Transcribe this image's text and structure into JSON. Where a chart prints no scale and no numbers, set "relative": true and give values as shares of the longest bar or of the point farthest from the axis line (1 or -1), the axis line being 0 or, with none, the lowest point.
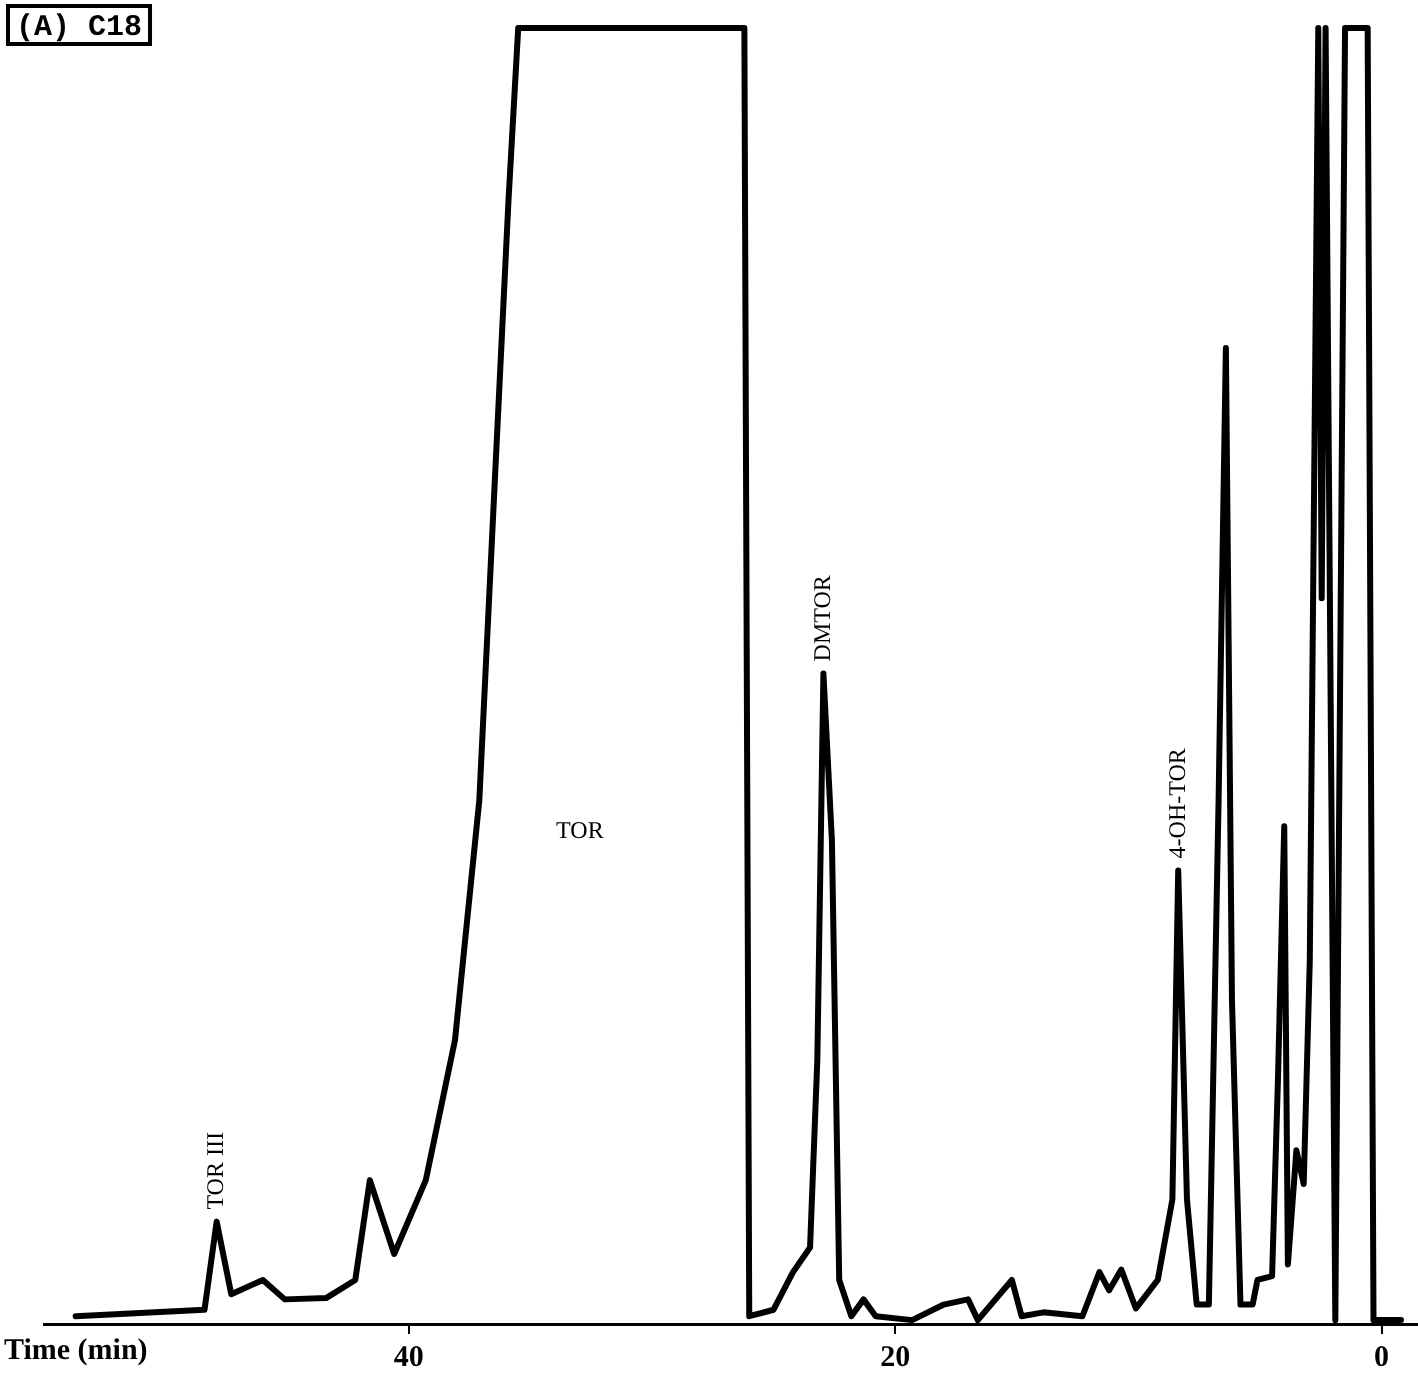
{
  "chart_data": {
    "type": "line",
    "title": "(A) C18",
    "xlabel": "Time (min)",
    "relative": true,
    "xlim": [
      55,
      -1.5
    ],
    "xticks": [
      40,
      20,
      0
    ],
    "grid": false,
    "legend": false,
    "marker": "none",
    "line_style": "solid",
    "annotations": [
      {
        "text": "TOR III",
        "x": 47.9,
        "y": 0.079
      },
      "TOR",
      {
        "text": "DMTOR",
        "x": 22.95,
        "y": 0.502
      },
      {
        "text": "4-OH-TOR",
        "x": 8.36,
        "y": 0.35
      }
    ],
    "series": [
      {
        "color": "#000000",
        "x": [
          53.7,
          48.4,
          47.9,
          47.3,
          46.0,
          45.1,
          43.4,
          42.2,
          41.6,
          40.6,
          39.3,
          38.1,
          37.1,
          36.5,
          35.9,
          35.5,
          26.2,
          26.1,
          26.0,
          25.0,
          24.2,
          23.5,
          23.2,
          22.95,
          22.6,
          22.3,
          21.8,
          21.3,
          20.8,
          19.3,
          18.0,
          17.0,
          16.6,
          15.2,
          14.8,
          13.9,
          12.3,
          11.6,
          11.2,
          10.7,
          10.1,
          9.2,
          8.6,
          8.36,
          8.0,
          7.6,
          7.1,
          6.7,
          6.4,
          6.15,
          5.8,
          5.3,
          5.1,
          4.5,
          4.26,
          4.0,
          3.85,
          3.5,
          3.2,
          2.95,
          2.6,
          2.46,
          2.3,
          1.9,
          1.5,
          0.57,
          0.33,
          -0.8
        ],
        "values": [
          0.006,
          0.011,
          0.079,
          0.023,
          0.034,
          0.019,
          0.02,
          0.034,
          0.111,
          0.054,
          0.111,
          0.219,
          0.404,
          0.636,
          0.867,
          1,
          1,
          0.5,
          0.006,
          0.011,
          0.04,
          0.059,
          0.204,
          0.502,
          0.373,
          0.034,
          0.006,
          0.019,
          0.006,
          0.003,
          0.015,
          0.019,
          0.003,
          0.034,
          0.006,
          0.009,
          0.006,
          0.04,
          0.026,
          0.042,
          0.012,
          0.034,
          0.096,
          0.35,
          0.096,
          0.015,
          0.015,
          0.404,
          0.753,
          0.25,
          0.015,
          0.015,
          0.034,
          0.037,
          0.188,
          0.384,
          0.046,
          0.134,
          0.108,
          0.28,
          1,
          0.56,
          1,
          0.003,
          1,
          1,
          0.003,
          0.003
        ]
      }
    ]
  }
}
